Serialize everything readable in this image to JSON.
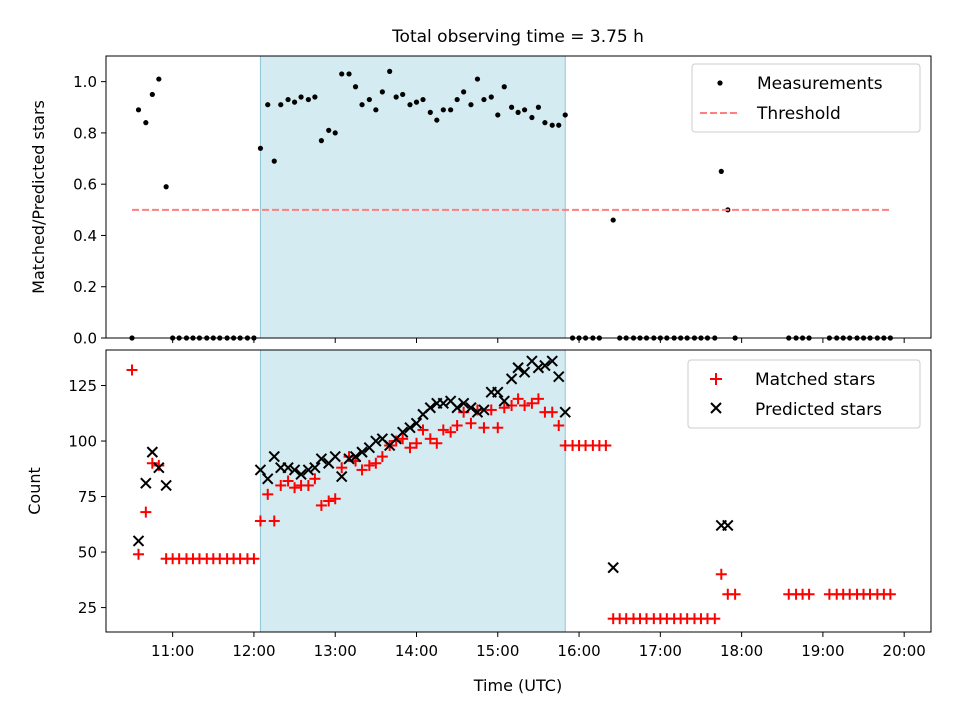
{
  "chart_data": [
    {
      "type": "scatter",
      "title": "Total observing time = 3.75 h",
      "xlabel": "",
      "ylabel": "Matched/Predicted stars",
      "ylim": [
        0,
        1.1
      ],
      "yticks": [
        "0.0",
        "0.2",
        "0.4",
        "0.6",
        "0.8",
        "1.0"
      ],
      "xlim": [
        10.18,
        20.33
      ],
      "xticks": [
        11,
        12,
        13,
        14,
        15,
        16,
        17,
        18,
        19,
        20
      ],
      "shaded_interval": [
        12.08,
        15.83
      ],
      "legend_position": "top-right",
      "legend": [
        "Measurements",
        "Threshold"
      ],
      "series": [
        {
          "name": "Measurements",
          "color": "#000000",
          "marker": "dot",
          "points": [
            [
              10.5,
              0.0
            ],
            [
              10.58,
              0.89
            ],
            [
              10.67,
              0.84
            ],
            [
              10.75,
              0.95
            ],
            [
              10.83,
              1.01
            ],
            [
              10.92,
              0.59
            ],
            [
              11.0,
              0.0
            ],
            [
              11.08,
              0.0
            ],
            [
              11.17,
              0.0
            ],
            [
              11.25,
              0.0
            ],
            [
              11.33,
              0.0
            ],
            [
              11.42,
              0.0
            ],
            [
              11.5,
              0.0
            ],
            [
              11.58,
              0.0
            ],
            [
              11.67,
              0.0
            ],
            [
              11.75,
              0.0
            ],
            [
              11.83,
              0.0
            ],
            [
              11.92,
              0.0
            ],
            [
              12.0,
              0.0
            ],
            [
              12.08,
              0.74
            ],
            [
              12.17,
              0.91
            ],
            [
              12.25,
              0.69
            ],
            [
              12.33,
              0.91
            ],
            [
              12.42,
              0.93
            ],
            [
              12.5,
              0.92
            ],
            [
              12.58,
              0.94
            ],
            [
              12.67,
              0.93
            ],
            [
              12.75,
              0.94
            ],
            [
              12.83,
              0.77
            ],
            [
              12.92,
              0.81
            ],
            [
              13.0,
              0.8
            ],
            [
              13.08,
              1.03
            ],
            [
              13.17,
              1.03
            ],
            [
              13.25,
              0.98
            ],
            [
              13.33,
              0.91
            ],
            [
              13.42,
              0.93
            ],
            [
              13.5,
              0.89
            ],
            [
              13.58,
              0.96
            ],
            [
              13.67,
              1.04
            ],
            [
              13.75,
              0.94
            ],
            [
              13.83,
              0.95
            ],
            [
              13.92,
              0.91
            ],
            [
              14.0,
              0.92
            ],
            [
              14.08,
              0.93
            ],
            [
              14.17,
              0.88
            ],
            [
              14.25,
              0.85
            ],
            [
              14.33,
              0.89
            ],
            [
              14.42,
              0.89
            ],
            [
              14.5,
              0.93
            ],
            [
              14.58,
              0.96
            ],
            [
              14.67,
              0.91
            ],
            [
              14.75,
              1.01
            ],
            [
              14.83,
              0.93
            ],
            [
              14.92,
              0.94
            ],
            [
              15.0,
              0.87
            ],
            [
              15.08,
              0.98
            ],
            [
              15.17,
              0.9
            ],
            [
              15.25,
              0.88
            ],
            [
              15.33,
              0.89
            ],
            [
              15.42,
              0.86
            ],
            [
              15.5,
              0.9
            ],
            [
              15.58,
              0.84
            ],
            [
              15.67,
              0.83
            ],
            [
              15.75,
              0.83
            ],
            [
              15.83,
              0.87
            ],
            [
              15.92,
              0.0
            ],
            [
              16.0,
              0.0
            ],
            [
              16.08,
              0.0
            ],
            [
              16.17,
              0.0
            ],
            [
              16.25,
              0.0
            ],
            [
              16.42,
              0.46
            ],
            [
              16.5,
              0.0
            ],
            [
              16.58,
              0.0
            ],
            [
              16.67,
              0.0
            ],
            [
              16.75,
              0.0
            ],
            [
              16.83,
              0.0
            ],
            [
              16.92,
              0.0
            ],
            [
              17.0,
              0.0
            ],
            [
              17.08,
              0.0
            ],
            [
              17.17,
              0.0
            ],
            [
              17.25,
              0.0
            ],
            [
              17.33,
              0.0
            ],
            [
              17.42,
              0.0
            ],
            [
              17.5,
              0.0
            ],
            [
              17.58,
              0.0
            ],
            [
              17.67,
              0.0
            ],
            [
              17.75,
              0.65
            ],
            [
              17.83,
              0.5
            ],
            [
              17.92,
              0.0
            ],
            [
              18.58,
              0.0
            ],
            [
              18.67,
              0.0
            ],
            [
              18.75,
              0.0
            ],
            [
              18.83,
              0.0
            ],
            [
              19.08,
              0.0
            ],
            [
              19.17,
              0.0
            ],
            [
              19.25,
              0.0
            ],
            [
              19.33,
              0.0
            ],
            [
              19.42,
              0.0
            ],
            [
              19.5,
              0.0
            ],
            [
              19.58,
              0.0
            ],
            [
              19.67,
              0.0
            ],
            [
              19.75,
              0.0
            ],
            [
              19.83,
              0.0
            ]
          ]
        },
        {
          "name": "Threshold",
          "color": "#ff7f7f",
          "line_style": "dashed",
          "points": [
            [
              10.5,
              0.5
            ],
            [
              19.83,
              0.5
            ]
          ]
        }
      ]
    },
    {
      "type": "scatter",
      "title": "",
      "xlabel": "Time (UTC)",
      "ylabel": "Count",
      "ylim": [
        14,
        141
      ],
      "yticks": [
        25,
        50,
        75,
        100,
        125
      ],
      "xlim": [
        10.18,
        20.33
      ],
      "xticks": [
        11,
        12,
        13,
        14,
        15,
        16,
        17,
        18,
        19,
        20
      ],
      "xtick_labels": [
        "11:00",
        "12:00",
        "13:00",
        "14:00",
        "15:00",
        "16:00",
        "17:00",
        "18:00",
        "19:00",
        "20:00"
      ],
      "shaded_interval": [
        12.08,
        15.83
      ],
      "legend_position": "top-right",
      "legend": [
        "Matched stars",
        "Predicted stars"
      ],
      "series": [
        {
          "name": "Matched stars",
          "color": "#ff0000",
          "marker": "plus",
          "points": [
            [
              10.5,
              132
            ],
            [
              10.58,
              49
            ],
            [
              10.67,
              68
            ],
            [
              10.75,
              90
            ],
            [
              10.83,
              89
            ],
            [
              10.92,
              47
            ],
            [
              11.0,
              47
            ],
            [
              11.08,
              47
            ],
            [
              11.17,
              47
            ],
            [
              11.25,
              47
            ],
            [
              11.33,
              47
            ],
            [
              11.42,
              47
            ],
            [
              11.5,
              47
            ],
            [
              11.58,
              47
            ],
            [
              11.67,
              47
            ],
            [
              11.75,
              47
            ],
            [
              11.83,
              47
            ],
            [
              11.92,
              47
            ],
            [
              12.0,
              47
            ],
            [
              12.08,
              64
            ],
            [
              12.17,
              76
            ],
            [
              12.25,
              64
            ],
            [
              12.33,
              80
            ],
            [
              12.42,
              82
            ],
            [
              12.5,
              79
            ],
            [
              12.58,
              80
            ],
            [
              12.67,
              80
            ],
            [
              12.75,
              83
            ],
            [
              12.83,
              71
            ],
            [
              12.92,
              73
            ],
            [
              13.0,
              74
            ],
            [
              13.08,
              88
            ],
            [
              13.17,
              93
            ],
            [
              13.25,
              91
            ],
            [
              13.33,
              87
            ],
            [
              13.42,
              89
            ],
            [
              13.5,
              90
            ],
            [
              13.58,
              93
            ],
            [
              13.67,
              98
            ],
            [
              13.75,
              100
            ],
            [
              13.83,
              101
            ],
            [
              13.92,
              97
            ],
            [
              14.0,
              99
            ],
            [
              14.08,
              105
            ],
            [
              14.17,
              101
            ],
            [
              14.25,
              99
            ],
            [
              14.33,
              105
            ],
            [
              14.42,
              104
            ],
            [
              14.5,
              107
            ],
            [
              14.58,
              113
            ],
            [
              14.67,
              108
            ],
            [
              14.75,
              114
            ],
            [
              14.83,
              106
            ],
            [
              14.92,
              114
            ],
            [
              15.0,
              106
            ],
            [
              15.08,
              115
            ],
            [
              15.17,
              116
            ],
            [
              15.25,
              119
            ],
            [
              15.33,
              116
            ],
            [
              15.42,
              117
            ],
            [
              15.5,
              119
            ],
            [
              15.58,
              113
            ],
            [
              15.67,
              113
            ],
            [
              15.75,
              107
            ],
            [
              15.83,
              98
            ],
            [
              15.92,
              98
            ],
            [
              16.0,
              98
            ],
            [
              16.08,
              98
            ],
            [
              16.17,
              98
            ],
            [
              16.25,
              98
            ],
            [
              16.33,
              98
            ],
            [
              16.42,
              20
            ],
            [
              16.5,
              20
            ],
            [
              16.58,
              20
            ],
            [
              16.67,
              20
            ],
            [
              16.75,
              20
            ],
            [
              16.83,
              20
            ],
            [
              16.92,
              20
            ],
            [
              17.0,
              20
            ],
            [
              17.08,
              20
            ],
            [
              17.17,
              20
            ],
            [
              17.25,
              20
            ],
            [
              17.33,
              20
            ],
            [
              17.42,
              20
            ],
            [
              17.5,
              20
            ],
            [
              17.58,
              20
            ],
            [
              17.67,
              20
            ],
            [
              17.75,
              40
            ],
            [
              17.83,
              31
            ],
            [
              17.92,
              31
            ],
            [
              18.58,
              31
            ],
            [
              18.67,
              31
            ],
            [
              18.75,
              31
            ],
            [
              18.83,
              31
            ],
            [
              19.08,
              31
            ],
            [
              19.17,
              31
            ],
            [
              19.25,
              31
            ],
            [
              19.33,
              31
            ],
            [
              19.42,
              31
            ],
            [
              19.5,
              31
            ],
            [
              19.58,
              31
            ],
            [
              19.67,
              31
            ],
            [
              19.75,
              31
            ],
            [
              19.83,
              31
            ]
          ]
        },
        {
          "name": "Predicted stars",
          "color": "#000000",
          "marker": "x",
          "points": [
            [
              10.58,
              55
            ],
            [
              10.67,
              81
            ],
            [
              10.75,
              95
            ],
            [
              10.83,
              88
            ],
            [
              10.92,
              80
            ],
            [
              12.08,
              87
            ],
            [
              12.17,
              83
            ],
            [
              12.25,
              93
            ],
            [
              12.33,
              88
            ],
            [
              12.42,
              88
            ],
            [
              12.5,
              87
            ],
            [
              12.58,
              85
            ],
            [
              12.67,
              87
            ],
            [
              12.75,
              88
            ],
            [
              12.83,
              92
            ],
            [
              12.92,
              90
            ],
            [
              13.0,
              93
            ],
            [
              13.08,
              84
            ],
            [
              13.17,
              92
            ],
            [
              13.25,
              93
            ],
            [
              13.33,
              95
            ],
            [
              13.42,
              97
            ],
            [
              13.5,
              100
            ],
            [
              13.58,
              101
            ],
            [
              13.67,
              98
            ],
            [
              13.75,
              101
            ],
            [
              13.83,
              104
            ],
            [
              13.92,
              106
            ],
            [
              14.0,
              108
            ],
            [
              14.08,
              112
            ],
            [
              14.17,
              115
            ],
            [
              14.25,
              117
            ],
            [
              14.33,
              117
            ],
            [
              14.42,
              118
            ],
            [
              14.5,
              115
            ],
            [
              14.58,
              117
            ],
            [
              14.67,
              115
            ],
            [
              14.75,
              113
            ],
            [
              14.83,
              114
            ],
            [
              14.92,
              122
            ],
            [
              15.0,
              122
            ],
            [
              15.08,
              118
            ],
            [
              15.17,
              128
            ],
            [
              15.25,
              133
            ],
            [
              15.33,
              131
            ],
            [
              15.42,
              136
            ],
            [
              15.5,
              133
            ],
            [
              15.58,
              134
            ],
            [
              15.67,
              136
            ],
            [
              15.75,
              129
            ],
            [
              15.83,
              113
            ],
            [
              16.42,
              43
            ],
            [
              17.75,
              62
            ],
            [
              17.83,
              62
            ]
          ]
        }
      ]
    }
  ]
}
